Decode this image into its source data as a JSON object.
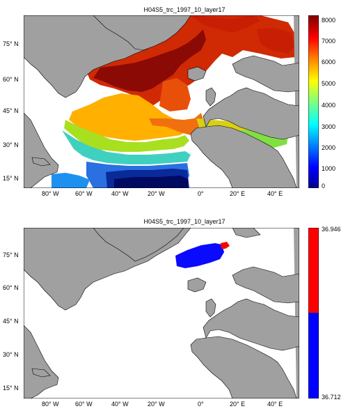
{
  "panels": [
    {
      "title": "H04S5_trc_1997_10_layer17",
      "lat_labels": [
        "75° N",
        "60° N",
        "45° N",
        "30° N",
        "15° N"
      ],
      "lon_labels": [
        "80° W",
        "60° W",
        "40° W",
        "20° W",
        "0°",
        "20° E",
        "40° E"
      ],
      "colorbar": {
        "type": "continuous",
        "tick_labels": [
          "8000",
          "7000",
          "6000",
          "5000",
          "4000",
          "3000",
          "2000",
          "1000",
          "0"
        ],
        "range": [
          0,
          8000
        ]
      },
      "colors": {
        "ocean": "#ffffff",
        "land": "#a0a0a0"
      }
    },
    {
      "title": "H04S5_trc_1997_10_layer17",
      "lat_labels": [
        "75° N",
        "60° N",
        "45° N",
        "30° N",
        "15° N"
      ],
      "lon_labels": [
        "80° W",
        "60° W",
        "40° W",
        "20° W",
        "0°",
        "20° E",
        "40° E"
      ],
      "colorbar": {
        "type": "two-class",
        "max_label": "36.946",
        "min_label": "36.712",
        "upper_color": "#ff0000",
        "lower_color": "#0000ff"
      },
      "colors": {
        "ocean": "#ffffff",
        "land": "#a0a0a0"
      }
    }
  ]
}
